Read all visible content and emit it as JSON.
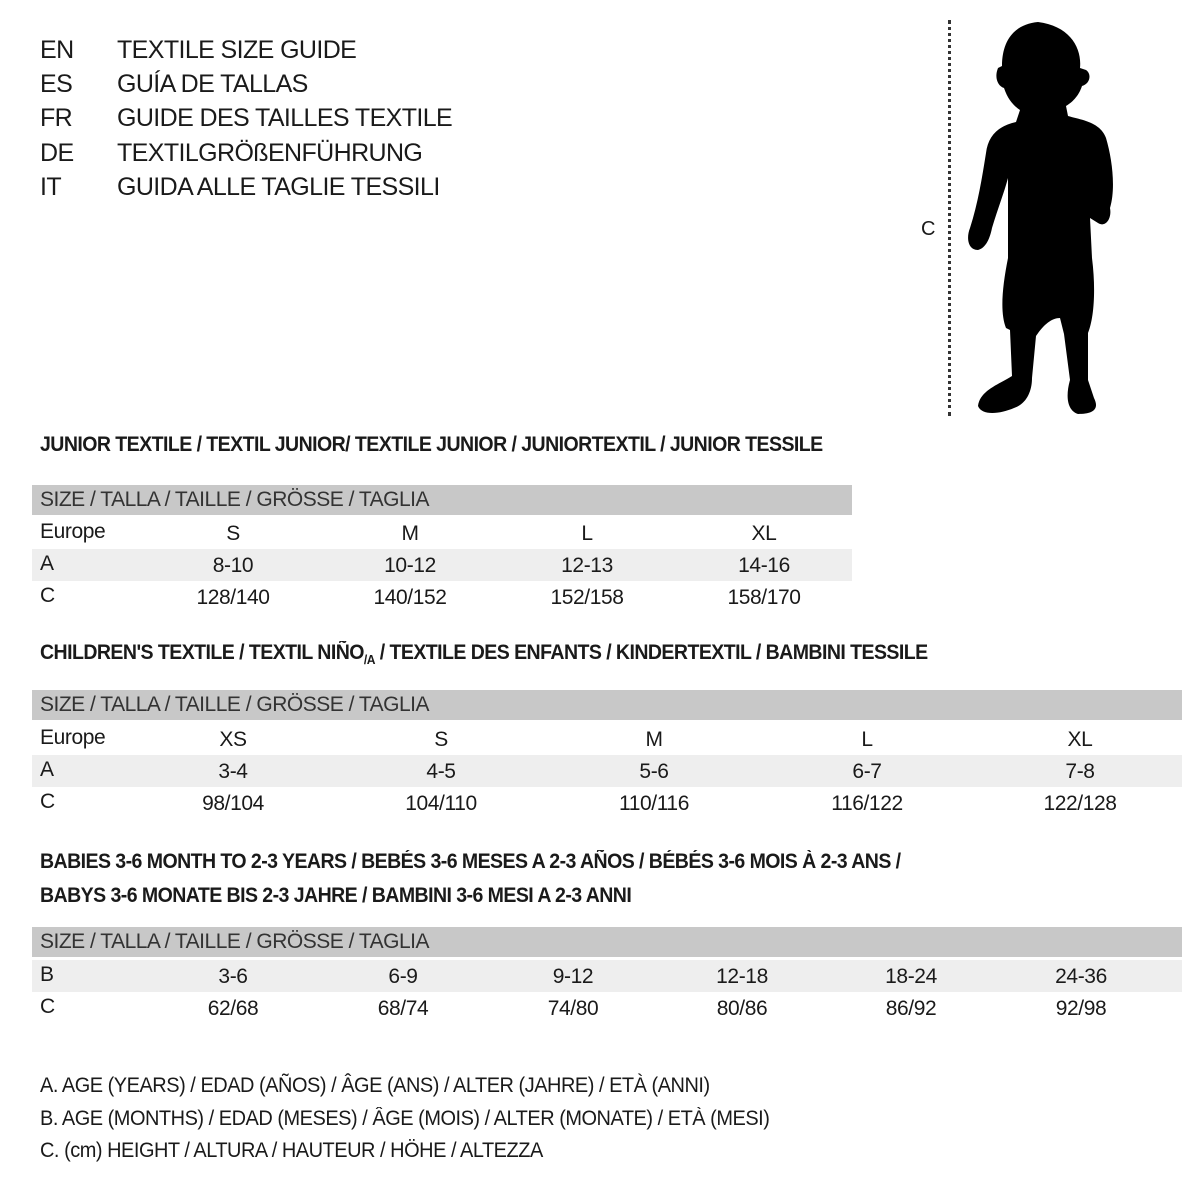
{
  "titles": [
    {
      "code": "EN",
      "text": "TEXTILE SIZE GUIDE"
    },
    {
      "code": "ES",
      "text": "GUÍA DE TALLAS"
    },
    {
      "code": "FR",
      "text": "GUIDE DES TAILLES TEXTILE"
    },
    {
      "code": "DE",
      "text": "TEXTILGRÖßENFÜHRUNG"
    },
    {
      "code": "IT",
      "text": "GUIDA ALLE TAGLIE TESSILI"
    }
  ],
  "figure": {
    "measure_label": "C",
    "icon": "child-silhouette"
  },
  "junior": {
    "heading": "JUNIOR TEXTILE / TEXTIL JUNIOR/ TEXTILE JUNIOR / JUNIORTEXTIL / JUNIOR TESSILE",
    "header": "SIZE / TALLA / TAILLE / GRÖSSE / TAGLIA",
    "rows": [
      {
        "label": "Europe",
        "values": [
          "S",
          "M",
          "L",
          "XL"
        ]
      },
      {
        "label": "A",
        "values": [
          "8-10",
          "10-12",
          "12-13",
          "14-16"
        ]
      },
      {
        "label": "C",
        "values": [
          "128/140",
          "140/152",
          "152/158",
          "158/170"
        ]
      }
    ]
  },
  "children": {
    "heading": "CHILDREN'S TEXTILE / TEXTIL NIÑO",
    "heading_sub": "/A",
    "heading_rest": " / TEXTILE DES ENFANTS / KINDERTEXTIL / BAMBINI TESSILE",
    "header": "SIZE / TALLA / TAILLE / GRÖSSE / TAGLIA",
    "rows": [
      {
        "label": "Europe",
        "values": [
          "XS",
          "S",
          "M",
          "L",
          "XL"
        ]
      },
      {
        "label": "A",
        "values": [
          "3-4",
          "4-5",
          "5-6",
          "6-7",
          "7-8"
        ]
      },
      {
        "label": "C",
        "values": [
          "98/104",
          "104/110",
          "110/116",
          "116/122",
          "122/128"
        ]
      }
    ]
  },
  "babies": {
    "heading_line1": "BABIES 3-6 MONTH TO 2-3 YEARS / BEBÉS 3-6 MESES A 2-3 AÑOS / BÉBÉS 3-6 MOIS À 2-3 ANS /",
    "heading_line2": "BABYS 3-6 MONATE BIS 2-3 JAHRE / BAMBINI 3-6 MESI A 2-3 ANNI",
    "header": "SIZE / TALLA / TAILLE / GRÖSSE / TAGLIA",
    "rows": [
      {
        "label": "B",
        "values": [
          "3-6",
          "6-9",
          "9-12",
          "12-18",
          "18-24",
          "24-36"
        ]
      },
      {
        "label": "C",
        "values": [
          "62/68",
          "68/74",
          "74/80",
          "80/86",
          "86/92",
          "92/98"
        ]
      }
    ]
  },
  "legend": [
    "A. AGE (YEARS) / EDAD (AÑOS) / ÂGE (ANS) / ALTER (JAHRE) / ETÀ (ANNI)",
    "B. AGE (MONTHS) / EDAD (MESES) / ÂGE (MOIS) / ALTER (MONATE) / ETÀ (MESI)",
    "C. (cm) HEIGHT / ALTURA / HAUTEUR / HÖHE / ALTEZZA"
  ],
  "colors": {
    "header_bg": "#c8c8c8",
    "shade_bg": "#eeeeee",
    "text": "#1a1a1a"
  }
}
